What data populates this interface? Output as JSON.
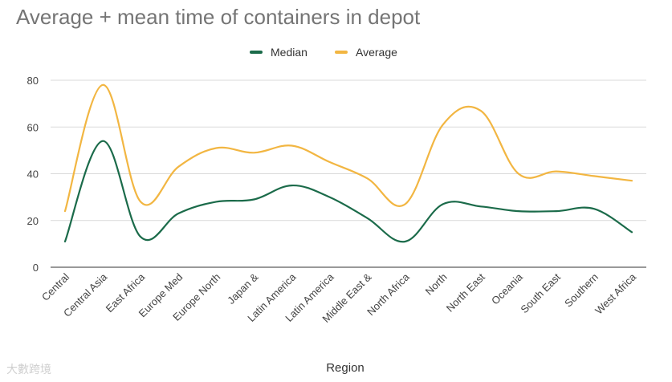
{
  "chart_data": {
    "type": "line",
    "title": "Average + mean time of containers in depot",
    "xlabel": "Region",
    "ylabel": "",
    "ylim": [
      0,
      80
    ],
    "yticks": [
      0,
      20,
      40,
      60,
      80
    ],
    "grid": true,
    "legend_position": "top",
    "categories": [
      "Central",
      "Central Asia",
      "East Africa",
      "Europe Med",
      "Europe North",
      "Japan &",
      "Latin America",
      "Latin America",
      "Middle East &",
      "North Africa",
      "North",
      "North East",
      "Oceania",
      "South East",
      "Southern",
      "West Africa"
    ],
    "series": [
      {
        "name": "Median",
        "color": "#1b6b4a",
        "values": [
          11,
          54,
          13,
          23,
          28,
          29,
          35,
          30,
          21,
          11,
          27,
          26,
          24,
          24,
          25,
          15
        ]
      },
      {
        "name": "Average",
        "color": "#f2b642",
        "values": [
          24,
          78,
          28,
          43,
          51,
          49,
          52,
          45,
          38,
          27,
          61,
          67,
          40,
          41,
          39,
          37
        ]
      }
    ]
  },
  "watermark": {
    "text": "大數跨境"
  }
}
